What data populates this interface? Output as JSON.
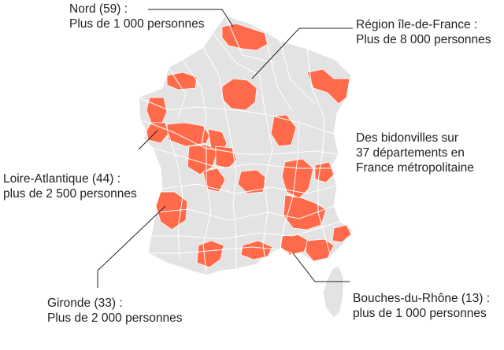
{
  "map": {
    "land_color": "#e3e3e3",
    "border_color": "#ffffff",
    "highlight_color": "#ff6b4a",
    "leader_color": "#222222"
  },
  "callouts": {
    "nord": {
      "line1": "Nord (59) :",
      "line2": "Plus de 1 000 personnes"
    },
    "ile_de_france": {
      "line1": "Région île-de-France :",
      "line2": "Plus de 8 000 personnes"
    },
    "loire_atlantique": {
      "line1": "Loire-Atlantique (44) :",
      "line2": "plus de 2 500 personnes"
    },
    "gironde": {
      "line1": "Gironde (33) :",
      "line2": "Plus de 2 000 personnes"
    },
    "bouches_du_rhone": {
      "line1": "Bouches-du-Rhône (13) :",
      "line2": "plus de 1 000 personnes"
    }
  },
  "summary": {
    "line1": "Des bidonvilles sur",
    "line2": "37 départements en",
    "line3": "France métropolitaine"
  }
}
